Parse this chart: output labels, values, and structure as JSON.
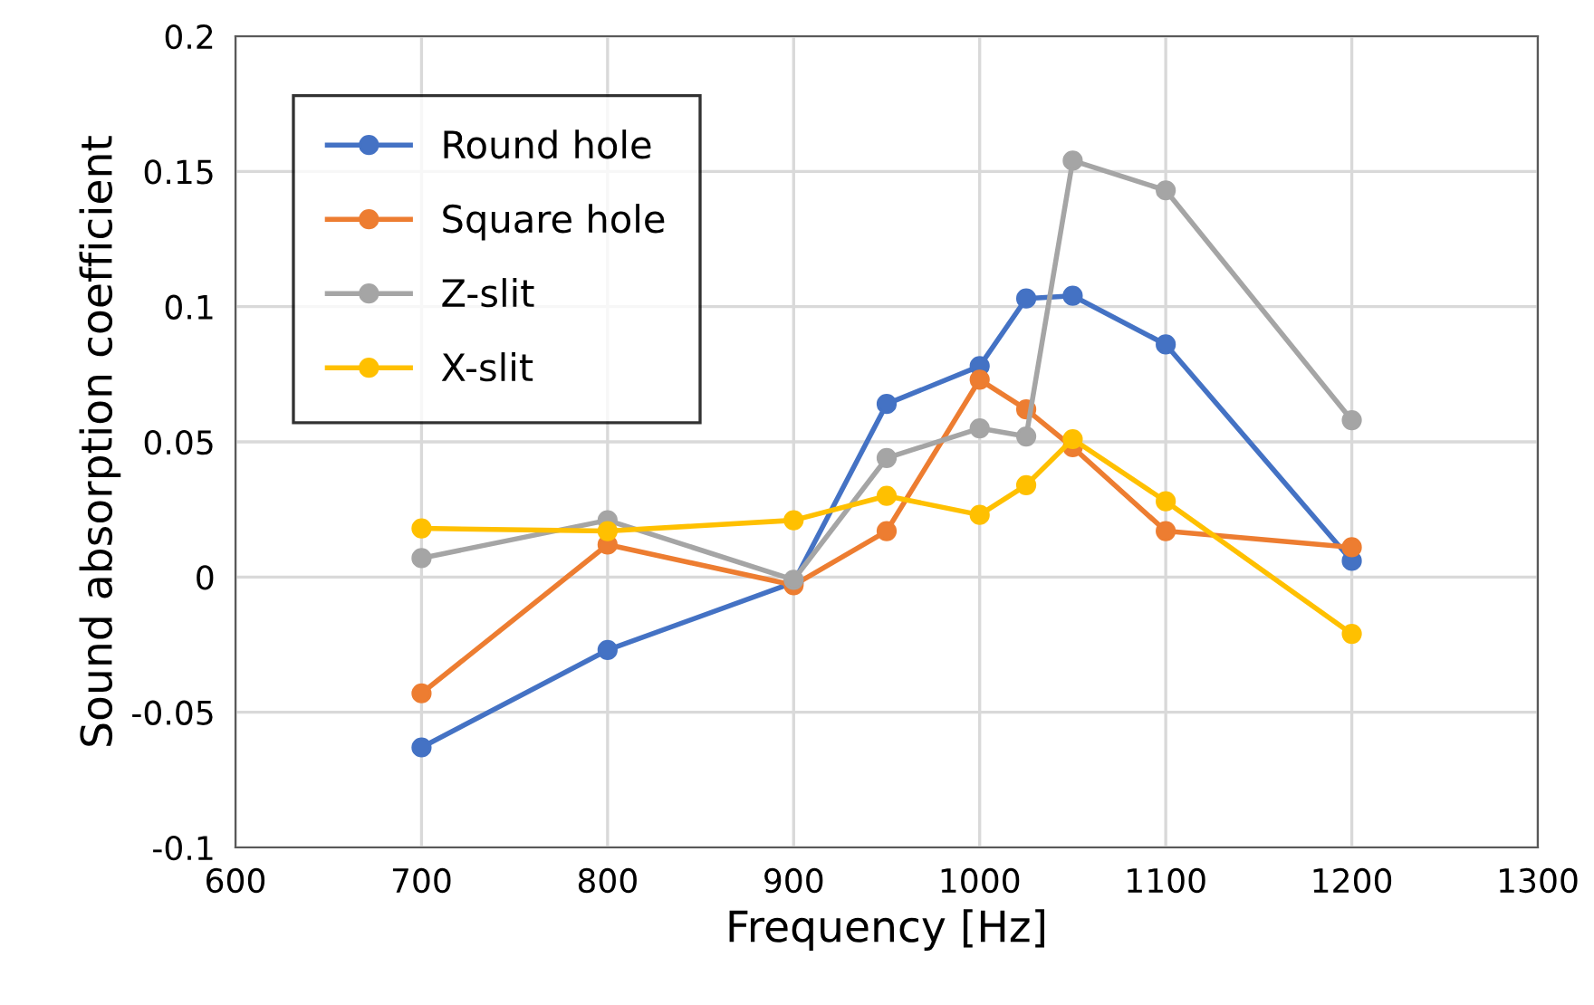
{
  "chart_data": {
    "type": "line",
    "xlabel": "Frequency [Hz]",
    "ylabel": "Sound absorption coefficient",
    "x": [
      700,
      800,
      900,
      950,
      1000,
      1025,
      1050,
      1100,
      1200
    ],
    "series": [
      {
        "name": "Round hole",
        "color": "#4472c4",
        "values": [
          -0.063,
          -0.027,
          -0.002,
          0.064,
          0.078,
          0.103,
          0.104,
          0.086,
          0.006
        ]
      },
      {
        "name": "Square hole",
        "color": "#ed7d31",
        "values": [
          -0.043,
          0.012,
          -0.003,
          0.017,
          0.073,
          0.062,
          0.048,
          0.017,
          0.011
        ]
      },
      {
        "name": "Z-slit",
        "color": "#a5a5a5",
        "values": [
          0.007,
          0.021,
          -0.001,
          0.044,
          0.055,
          0.052,
          0.154,
          0.143,
          0.058
        ]
      },
      {
        "name": "X-slit",
        "color": "#ffc000",
        "values": [
          0.018,
          0.017,
          0.021,
          0.03,
          0.023,
          0.034,
          0.051,
          0.028,
          -0.021
        ]
      }
    ],
    "xlim": [
      600,
      1300
    ],
    "xticks": [
      600,
      700,
      800,
      900,
      1000,
      1100,
      1200,
      1300
    ],
    "ylim": [
      -0.1,
      0.2
    ],
    "yticks": [
      -0.1,
      -0.05,
      0,
      0.05,
      0.1,
      0.15,
      0.2
    ],
    "grid": true,
    "legend": "top left",
    "marker": "circle",
    "line_style": "solid"
  }
}
